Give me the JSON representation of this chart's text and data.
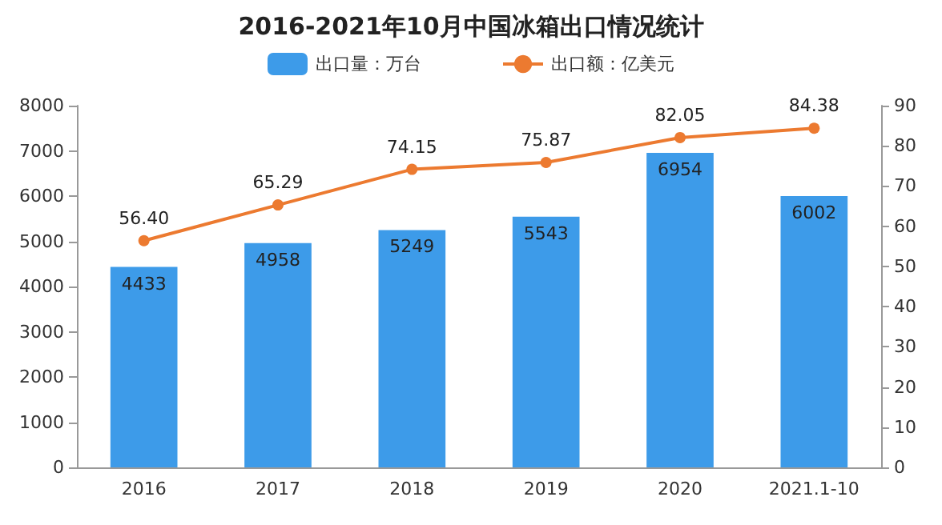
{
  "chart_data": {
    "type": "bar",
    "title": "2016-2021年10月中国冰箱出口情况统计",
    "categories": [
      "2016",
      "2017",
      "2018",
      "2019",
      "2020",
      "2021.1-10"
    ],
    "series": [
      {
        "name": "出口量：万台",
        "color": "#3d9be9",
        "values": [
          4433,
          4958,
          5249,
          5543,
          6954,
          6002
        ]
      },
      {
        "name": "出口额：亿美元",
        "type": "line",
        "axis": "y2",
        "color": "#ec7a30",
        "values": [
          56.4,
          65.29,
          74.15,
          75.87,
          82.05,
          84.38
        ],
        "value_labels": [
          "56.40",
          "65.29",
          "74.15",
          "75.87",
          "82.05",
          "84.38"
        ]
      }
    ],
    "data_labels": true,
    "ylim": [
      0,
      8000
    ],
    "yticks": [
      0,
      1000,
      2000,
      3000,
      4000,
      5000,
      6000,
      7000,
      8000
    ],
    "y2lim": [
      0,
      90
    ],
    "y2ticks": [
      0,
      10,
      20,
      30,
      40,
      50,
      60,
      70,
      80,
      90
    ],
    "legend": "top",
    "marker": "circle",
    "grid": false
  }
}
